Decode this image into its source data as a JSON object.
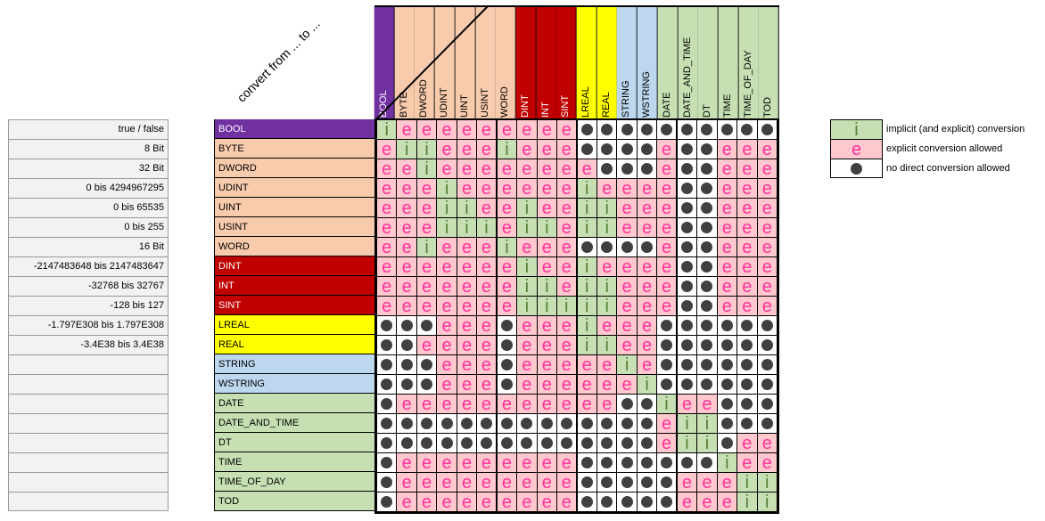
{
  "title": "convert from ... to ...",
  "types": [
    "BOOL",
    "BYTE",
    "DWORD",
    "UDINT",
    "UINT",
    "USINT",
    "WORD",
    "DINT",
    "INT",
    "SINT",
    "LREAL",
    "REAL",
    "STRING",
    "WSTRING",
    "DATE",
    "DATE_AND_TIME",
    "DT",
    "TIME",
    "TIME_OF_DAY",
    "TOD"
  ],
  "type_colors": [
    "#7030A0",
    "#F8CBAD",
    "#F8CBAD",
    "#F8CBAD",
    "#F8CBAD",
    "#F8CBAD",
    "#F8CBAD",
    "#C00000",
    "#C00000",
    "#C00000",
    "#FFFF00",
    "#FFFF00",
    "#BDD7EE",
    "#BDD7EE",
    "#C6E0B4",
    "#C6E0B4",
    "#C6E0B4",
    "#C6E0B4",
    "#C6E0B4",
    "#C6E0B4"
  ],
  "type_text_colors": [
    "#FFFFFF",
    "#000000",
    "#000000",
    "#000000",
    "#000000",
    "#000000",
    "#000000",
    "#FFFFFF",
    "#FFFFFF",
    "#FFFFFF",
    "#000000",
    "#000000",
    "#000000",
    "#000000",
    "#000000",
    "#000000",
    "#000000",
    "#000000",
    "#000000",
    "#000000"
  ],
  "ranges": [
    "true / false",
    "8 Bit",
    "32 Bit",
    "0 bis 4294967295",
    "0 bis 65535",
    "0 bis 255",
    "16 Bit",
    "-2147483648 bis 2147483647",
    "-32768 bis 32767",
    "-128 bis 127",
    "-1.797E308 bis 1.797E308",
    "-3.4E38 bis 3.4E38",
    "",
    "",
    "",
    "",
    "",
    "",
    "",
    ""
  ],
  "matrix": [
    "ieeeeeeeeexxxxxxxxxx",
    "eiieeeieeexxxxexxeee",
    "eeieeeeeeeexxxexxeee",
    "eeeieeeeeeieeeexxeee",
    "eeeiieeieeiieeexxeee",
    "eeeiiieiieiieeexxeee",
    "eeieeeieeexxxxexxeee",
    "eeeeeeeieeieeeexxeee",
    "eeeeeeeiieiieeexxeee",
    "eeeeeeeiiiiieeexxeee",
    "xxxeeexeeeieeexxxxxx",
    "xxeeeexeeeiieexxxxxx",
    "xxxeeexeeeeeiexxxxxx",
    "xxxeeexeeeeeeixxxxxx",
    "xeeeeeeeeeeexxieexxx",
    "xxxxxxxxxxxxxxeiixxx",
    "xxxxxxxxxxxxxxeiixee",
    "xeeeeeeeeexxxxxxxiee",
    "xeeeeeeeeexxxxxeeeii",
    "xeeeeeeeeexxxxxeeeii"
  ],
  "symbols": {
    "i": "i",
    "e": "e",
    "x": "no-conversion-dot"
  },
  "legend": [
    {
      "code": "i",
      "symbol": "i",
      "label": "implicit (and explicit) conversion"
    },
    {
      "code": "e",
      "symbol": "e",
      "label": "explicit conversion allowed"
    },
    {
      "code": "x",
      "symbol": "",
      "label": "no direct conversion allowed"
    }
  ]
}
